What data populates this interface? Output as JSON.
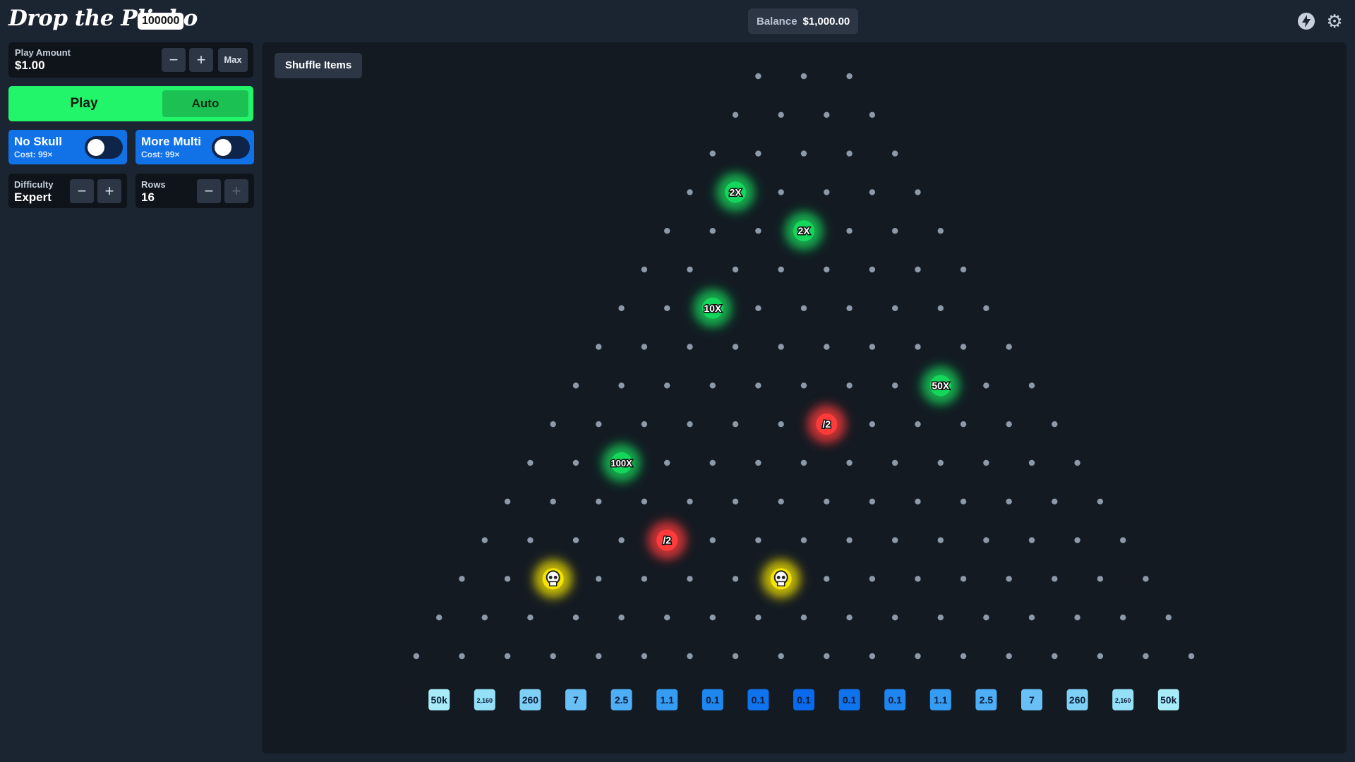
{
  "header": {
    "logo_text": "Drop the Plinko",
    "logo_badge": "100000",
    "balance_label": "Balance",
    "balance_value": "$1,000.00",
    "icons": [
      "lightning-icon",
      "gear-icon"
    ]
  },
  "sidebar": {
    "play_amount_label": "Play Amount",
    "play_amount_value": "$1.00",
    "minus": "−",
    "plus": "+",
    "max_label": "Max",
    "play_label": "Play",
    "auto_label": "Auto",
    "no_skull": {
      "label": "No Skull",
      "cost": "Cost: 99×",
      "on": false
    },
    "more_multi": {
      "label": "More Multi",
      "cost": "Cost: 99×",
      "on": false
    },
    "difficulty_label": "Difficulty",
    "difficulty_value": "Expert",
    "rows_label": "Rows",
    "rows_value": "16"
  },
  "board": {
    "shuffle_label": "Shuffle Items",
    "rows": 16,
    "items": [
      {
        "row": 3,
        "index": 1,
        "label": "2X",
        "kind": "multiplier"
      },
      {
        "row": 4,
        "index": 3,
        "label": "2X",
        "kind": "multiplier"
      },
      {
        "row": 6,
        "index": 2,
        "label": "10X",
        "kind": "multiplier"
      },
      {
        "row": 8,
        "index": 8,
        "label": "50X",
        "kind": "multiplier"
      },
      {
        "row": 9,
        "index": 6,
        "label": "/2",
        "kind": "divider"
      },
      {
        "row": 10,
        "index": 2,
        "label": "100X",
        "kind": "multiplier"
      },
      {
        "row": 12,
        "index": 4,
        "label": "/2",
        "kind": "divider"
      },
      {
        "row": 13,
        "index": 2,
        "label": "skull",
        "kind": "skull"
      },
      {
        "row": 13,
        "index": 7,
        "label": "skull",
        "kind": "skull"
      }
    ],
    "buckets": [
      "50k",
      "2,160",
      "260",
      "7",
      "2.5",
      "1.1",
      "0.1",
      "0.1",
      "0.1",
      "0.1",
      "0.1",
      "1.1",
      "2.5",
      "7",
      "260",
      "2,160",
      "50k"
    ],
    "bucket_colors": [
      "#a8ecf7",
      "#93e0f7",
      "#7fd0f7",
      "#68c0f7",
      "#4eaef6",
      "#359cf3",
      "#1f86f0",
      "#0f73ee",
      "#0a6aee",
      "#0f73ee",
      "#1f86f0",
      "#359cf3",
      "#4eaef6",
      "#68c0f7",
      "#7fd0f7",
      "#93e0f7",
      "#a8ecf7"
    ],
    "colors": {
      "peg": "#8c99a8",
      "multiplier": "#14d65a",
      "divider": "#ff3a3a",
      "skull": "#f5e400"
    }
  }
}
